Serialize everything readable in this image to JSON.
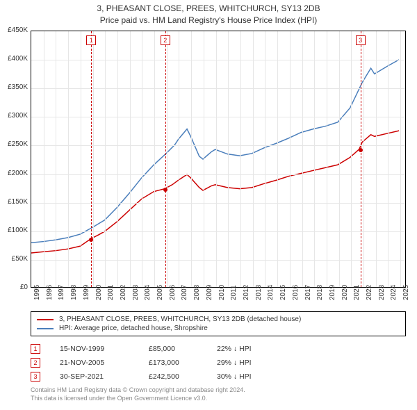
{
  "title": {
    "line1": "3, PHEASANT CLOSE, PREES, WHITCHURCH, SY13 2DB",
    "line2": "Price paid vs. HM Land Registry's House Price Index (HPI)"
  },
  "chart": {
    "type": "line",
    "background_color": "#ffffff",
    "grid_color": "#e6e6e6",
    "border_color": "#000000",
    "ylim": [
      0,
      450000
    ],
    "ytick_step": 50000,
    "yticks": [
      "£0",
      "£50K",
      "£100K",
      "£150K",
      "£200K",
      "£250K",
      "£300K",
      "£350K",
      "£400K",
      "£450K"
    ],
    "xlim": [
      1995,
      2025.5
    ],
    "xticks": [
      1995,
      1996,
      1997,
      1998,
      1999,
      2000,
      2001,
      2002,
      2003,
      2004,
      2005,
      2006,
      2007,
      2008,
      2009,
      2010,
      2011,
      2012,
      2013,
      2014,
      2015,
      2016,
      2017,
      2018,
      2019,
      2020,
      2021,
      2022,
      2023,
      2024,
      2025
    ],
    "label_fontsize": 10,
    "title_fontsize": 12,
    "title_color": "#333333",
    "series": [
      {
        "name": "property",
        "label": "3, PHEASANT CLOSE, PREES, WHITCHURCH, SY13 2DB (detached house)",
        "color": "#cc0000",
        "line_width": 1.5,
        "data": [
          [
            1995,
            60000
          ],
          [
            1996,
            62000
          ],
          [
            1997,
            64000
          ],
          [
            1998,
            67000
          ],
          [
            1999,
            72000
          ],
          [
            1999.87,
            85000
          ],
          [
            2000.5,
            92000
          ],
          [
            2001,
            98000
          ],
          [
            2002,
            115000
          ],
          [
            2003,
            135000
          ],
          [
            2004,
            155000
          ],
          [
            2005,
            168000
          ],
          [
            2005.89,
            173000
          ],
          [
            2006.5,
            180000
          ],
          [
            2007,
            188000
          ],
          [
            2007.7,
            198000
          ],
          [
            2008,
            192000
          ],
          [
            2008.7,
            175000
          ],
          [
            2009,
            170000
          ],
          [
            2009.7,
            178000
          ],
          [
            2010,
            180000
          ],
          [
            2011,
            175000
          ],
          [
            2012,
            173000
          ],
          [
            2013,
            175000
          ],
          [
            2014,
            182000
          ],
          [
            2015,
            188000
          ],
          [
            2016,
            195000
          ],
          [
            2017,
            200000
          ],
          [
            2018,
            205000
          ],
          [
            2019,
            210000
          ],
          [
            2020,
            215000
          ],
          [
            2021,
            228000
          ],
          [
            2021.75,
            242500
          ],
          [
            2022,
            255000
          ],
          [
            2022.7,
            268000
          ],
          [
            2023,
            265000
          ],
          [
            2024,
            270000
          ],
          [
            2025,
            275000
          ]
        ]
      },
      {
        "name": "hpi",
        "label": "HPI: Average price, detached house, Shropshire",
        "color": "#4a7ebb",
        "line_width": 1.5,
        "data": [
          [
            1995,
            78000
          ],
          [
            1996,
            80000
          ],
          [
            1997,
            83000
          ],
          [
            1998,
            87000
          ],
          [
            1999,
            93000
          ],
          [
            2000,
            105000
          ],
          [
            2001,
            118000
          ],
          [
            2002,
            140000
          ],
          [
            2003,
            165000
          ],
          [
            2004,
            192000
          ],
          [
            2005,
            215000
          ],
          [
            2006,
            235000
          ],
          [
            2006.7,
            250000
          ],
          [
            2007,
            260000
          ],
          [
            2007.7,
            278000
          ],
          [
            2008,
            265000
          ],
          [
            2008.7,
            230000
          ],
          [
            2009,
            225000
          ],
          [
            2009.7,
            238000
          ],
          [
            2010,
            242000
          ],
          [
            2011,
            234000
          ],
          [
            2012,
            231000
          ],
          [
            2013,
            235000
          ],
          [
            2014,
            245000
          ],
          [
            2015,
            253000
          ],
          [
            2016,
            262000
          ],
          [
            2017,
            272000
          ],
          [
            2018,
            278000
          ],
          [
            2019,
            283000
          ],
          [
            2020,
            290000
          ],
          [
            2021,
            315000
          ],
          [
            2022,
            360000
          ],
          [
            2022.7,
            385000
          ],
          [
            2023,
            375000
          ],
          [
            2024,
            388000
          ],
          [
            2025,
            400000
          ]
        ]
      }
    ],
    "markers": [
      {
        "id": "1",
        "x": 1999.87,
        "y": 85000,
        "box_top": true
      },
      {
        "id": "2",
        "x": 2005.89,
        "y": 173000,
        "box_top": true
      },
      {
        "id": "3",
        "x": 2021.75,
        "y": 242500,
        "box_top": true
      }
    ],
    "marker_box_color": "#cc0000",
    "dashline_color": "#cc0000"
  },
  "legend": {
    "border_color": "#000000",
    "fontsize": 10
  },
  "marker_table": [
    {
      "id": "1",
      "date": "15-NOV-1999",
      "price": "£85,000",
      "delta": "22% ↓ HPI"
    },
    {
      "id": "2",
      "date": "21-NOV-2005",
      "price": "£173,000",
      "delta": "29% ↓ HPI"
    },
    {
      "id": "3",
      "date": "30-SEP-2021",
      "price": "£242,500",
      "delta": "30% ↓ HPI"
    }
  ],
  "attribution": {
    "line1": "Contains HM Land Registry data © Crown copyright and database right 2024.",
    "line2": "This data is licensed under the Open Government Licence v3.0.",
    "color": "#888888"
  }
}
